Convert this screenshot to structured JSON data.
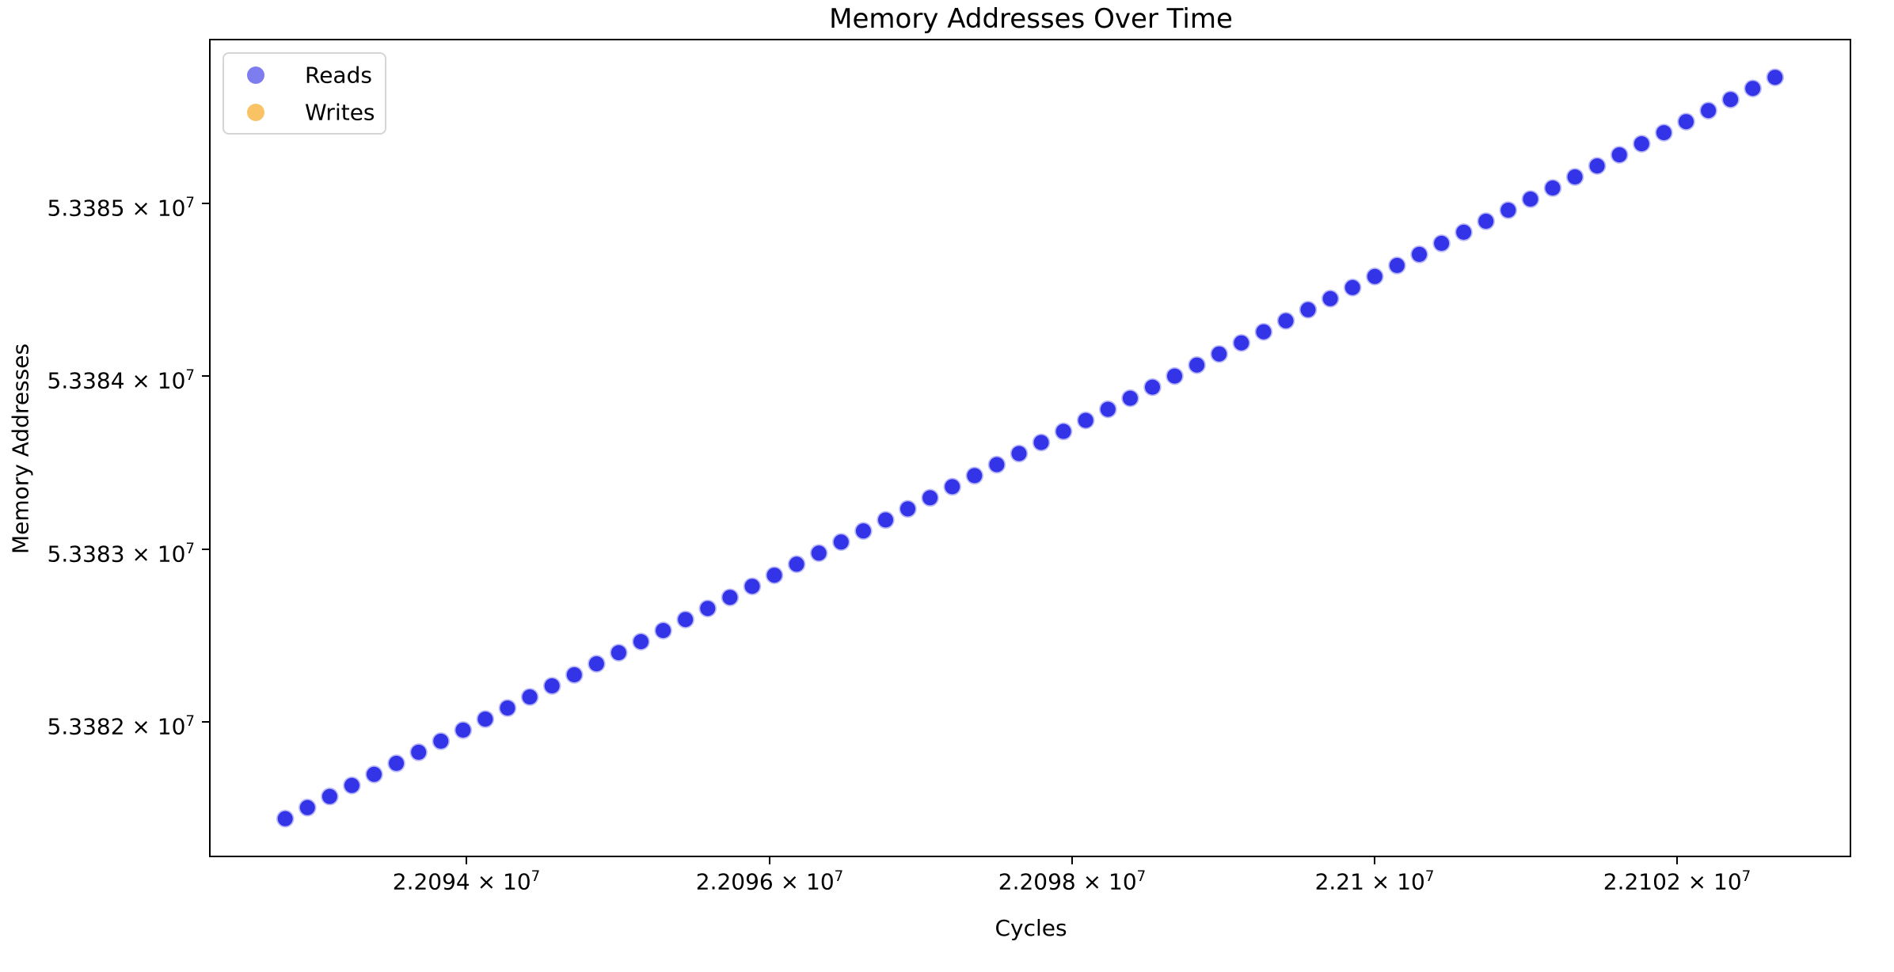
{
  "chart_data": {
    "type": "scatter",
    "title": "Memory Addresses Over Time",
    "xlabel": "Cycles",
    "ylabel": "Memory Addresses",
    "grid": false,
    "legend_position": "upper left",
    "marker_diameter_px": 19,
    "xlim": [
      22092307,
      22103142
    ],
    "ylim": [
      53381226,
      53385942
    ],
    "x_ticks": [
      {
        "value": 22094000,
        "label": "2.2094 × 10^7"
      },
      {
        "value": 22096000,
        "label": "2.2096 × 10^7"
      },
      {
        "value": 22098000,
        "label": "2.2098 × 10^7"
      },
      {
        "value": 22100000,
        "label": "2.21 × 10^7"
      },
      {
        "value": 22102000,
        "label": "2.2102 × 10^7"
      }
    ],
    "y_ticks": [
      {
        "value": 53382000,
        "label": "5.3382 × 10^7"
      },
      {
        "value": 53383000,
        "label": "5.3383 × 10^7"
      },
      {
        "value": 53384000,
        "label": "5.3384 × 10^7"
      },
      {
        "value": 53385000,
        "label": "5.3385 × 10^7"
      }
    ],
    "series": [
      {
        "name": "Reads",
        "color": "#3333e8",
        "legend_color": "#7d7df0",
        "x": [
          22092800,
          22092947,
          22093094,
          22093241,
          22093388,
          22093535,
          22093682,
          22093829,
          22093976,
          22094123,
          22094270,
          22094417,
          22094564,
          22094711,
          22094858,
          22095005,
          22095152,
          22095299,
          22095446,
          22095593,
          22095740,
          22095887,
          22096034,
          22096181,
          22096328,
          22096475,
          22096622,
          22096769,
          22096916,
          22097063,
          22097210,
          22097357,
          22097504,
          22097651,
          22097798,
          22097945,
          22098092,
          22098239,
          22098386,
          22098533,
          22098680,
          22098827,
          22098974,
          22099121,
          22099268,
          22099415,
          22099562,
          22099709,
          22099856,
          22100003,
          22100150,
          22100297,
          22100444,
          22100591,
          22100738,
          22100885,
          22101032,
          22101179,
          22101326,
          22101473,
          22101620,
          22101767,
          22101914,
          22102061,
          22102208,
          22102355,
          22102502,
          22102649
        ],
        "y": [
          53381440,
          53381504,
          53381568,
          53381632,
          53381696,
          53381760,
          53381824,
          53381888,
          53381952,
          53382016,
          53382080,
          53382144,
          53382208,
          53382272,
          53382336,
          53382400,
          53382464,
          53382528,
          53382592,
          53382656,
          53382720,
          53382784,
          53382848,
          53382912,
          53382976,
          53383040,
          53383104,
          53383168,
          53383232,
          53383296,
          53383360,
          53383424,
          53383488,
          53383552,
          53383616,
          53383680,
          53383744,
          53383808,
          53383872,
          53383936,
          53384000,
          53384064,
          53384128,
          53384192,
          53384256,
          53384320,
          53384384,
          53384448,
          53384512,
          53384576,
          53384640,
          53384704,
          53384768,
          53384832,
          53384896,
          53384960,
          53385024,
          53385088,
          53385152,
          53385216,
          53385280,
          53385344,
          53385408,
          53385472,
          53385536,
          53385600,
          53385664,
          53385728
        ]
      },
      {
        "name": "Writes",
        "color": "#f9c365",
        "legend_color": "#f9c365",
        "x": [],
        "y": []
      }
    ]
  }
}
